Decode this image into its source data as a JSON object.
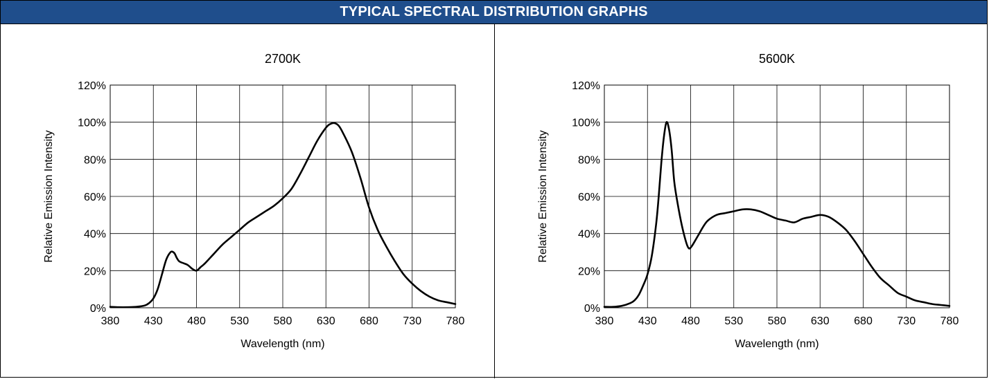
{
  "header": {
    "title": "TYPICAL SPECTRAL DISTRIBUTION GRAPHS",
    "background": "#1f4e8c"
  },
  "chart_data": [
    {
      "type": "line",
      "title": "2700K",
      "xlabel": "Wavelength (nm)",
      "ylabel": "Relative Emission Intensity",
      "xlim": [
        380,
        780
      ],
      "ylim": [
        0,
        120
      ],
      "xticks": [
        "380",
        "430",
        "480",
        "530",
        "580",
        "630",
        "680",
        "730",
        "780"
      ],
      "yticks": [
        "0%",
        "20%",
        "40%",
        "60%",
        "80%",
        "100%",
        "120%"
      ],
      "grid": true,
      "series": [
        {
          "color": "#000000",
          "x": [
            380,
            390,
            400,
            410,
            420,
            425,
            430,
            435,
            440,
            445,
            450,
            453,
            455,
            457,
            460,
            465,
            470,
            475,
            480,
            485,
            490,
            500,
            510,
            520,
            530,
            540,
            550,
            560,
            570,
            580,
            590,
            600,
            610,
            620,
            630,
            635,
            640,
            645,
            650,
            660,
            670,
            680,
            690,
            700,
            710,
            720,
            730,
            740,
            750,
            760,
            770,
            780
          ],
          "y": [
            0.5,
            0.3,
            0.3,
            0.5,
            1.2,
            2.5,
            5,
            10,
            18,
            26,
            30,
            30,
            29,
            27,
            25,
            24,
            23,
            21,
            20,
            22,
            24,
            29,
            34,
            38,
            42,
            46,
            49,
            52,
            55,
            59,
            64,
            72,
            81,
            90,
            97,
            99,
            99.5,
            98,
            94,
            84,
            70,
            54,
            42,
            33,
            25,
            18,
            13,
            9,
            6,
            4,
            3,
            2
          ]
        }
      ]
    },
    {
      "type": "line",
      "title": "5600K",
      "xlabel": "Wavelength (nm)",
      "ylabel": "Relative Emission Intensity",
      "xlim": [
        380,
        780
      ],
      "ylim": [
        0,
        120
      ],
      "xticks": [
        "380",
        "430",
        "480",
        "530",
        "580",
        "630",
        "680",
        "730",
        "780"
      ],
      "yticks": [
        "0%",
        "20%",
        "40%",
        "60%",
        "80%",
        "100%",
        "120%"
      ],
      "grid": true,
      "series": [
        {
          "color": "#000000",
          "x": [
            380,
            390,
            400,
            410,
            415,
            420,
            425,
            430,
            435,
            440,
            443,
            446,
            449,
            452,
            455,
            458,
            461,
            465,
            470,
            475,
            478,
            481,
            485,
            490,
            495,
            500,
            510,
            520,
            530,
            540,
            550,
            560,
            570,
            580,
            590,
            600,
            610,
            620,
            630,
            640,
            650,
            660,
            670,
            680,
            690,
            700,
            710,
            720,
            730,
            740,
            750,
            760,
            770,
            780
          ],
          "y": [
            0.5,
            0.5,
            1,
            2.5,
            4,
            7,
            12,
            18,
            28,
            45,
            60,
            78,
            92,
            100,
            96,
            85,
            68,
            56,
            44,
            35,
            32,
            33,
            36,
            40,
            44,
            47,
            50,
            51,
            52,
            53,
            53,
            52,
            50,
            48,
            47,
            46,
            48,
            49,
            50,
            49,
            46,
            42,
            36,
            29,
            22,
            16,
            12,
            8,
            6,
            4,
            3,
            2,
            1.5,
            1
          ]
        }
      ]
    }
  ]
}
